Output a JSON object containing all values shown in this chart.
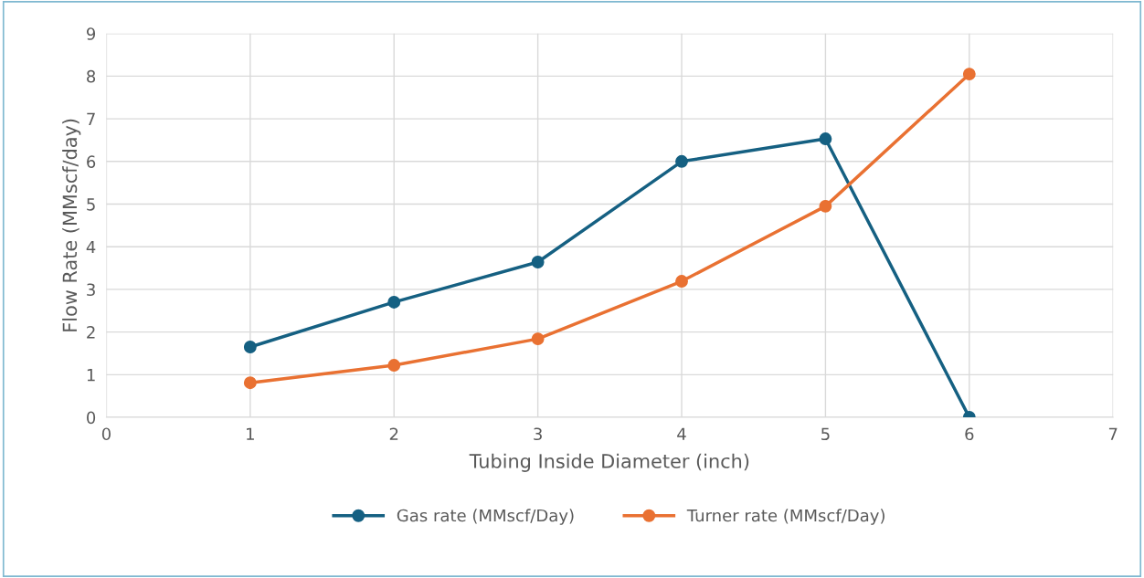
{
  "chart_data": {
    "type": "line",
    "xlabel": "Tubing Inside Diameter (inch)",
    "ylabel": "Flow Rate (MMscf/day)",
    "x": [
      1,
      2,
      3,
      4,
      5,
      6
    ],
    "series": [
      {
        "name": "Gas rate (MMscf/Day)",
        "color": "#156082",
        "values": [
          1.65,
          2.7,
          3.64,
          6.0,
          6.53,
          0
        ]
      },
      {
        "name": "Turner rate (MMscf/Day)",
        "color": "#e97132",
        "values": [
          0.81,
          1.22,
          1.84,
          3.19,
          4.95,
          8.05
        ]
      }
    ],
    "xlim": [
      0,
      7
    ],
    "xticks": [
      0,
      1,
      2,
      3,
      4,
      5,
      6,
      7
    ],
    "ylim": [
      0,
      9
    ],
    "yticks": [
      0,
      1,
      2,
      3,
      4,
      5,
      6,
      7,
      8,
      9
    ],
    "grid": true,
    "legend": "bottom",
    "marker": "circle",
    "line_style": "solid"
  }
}
